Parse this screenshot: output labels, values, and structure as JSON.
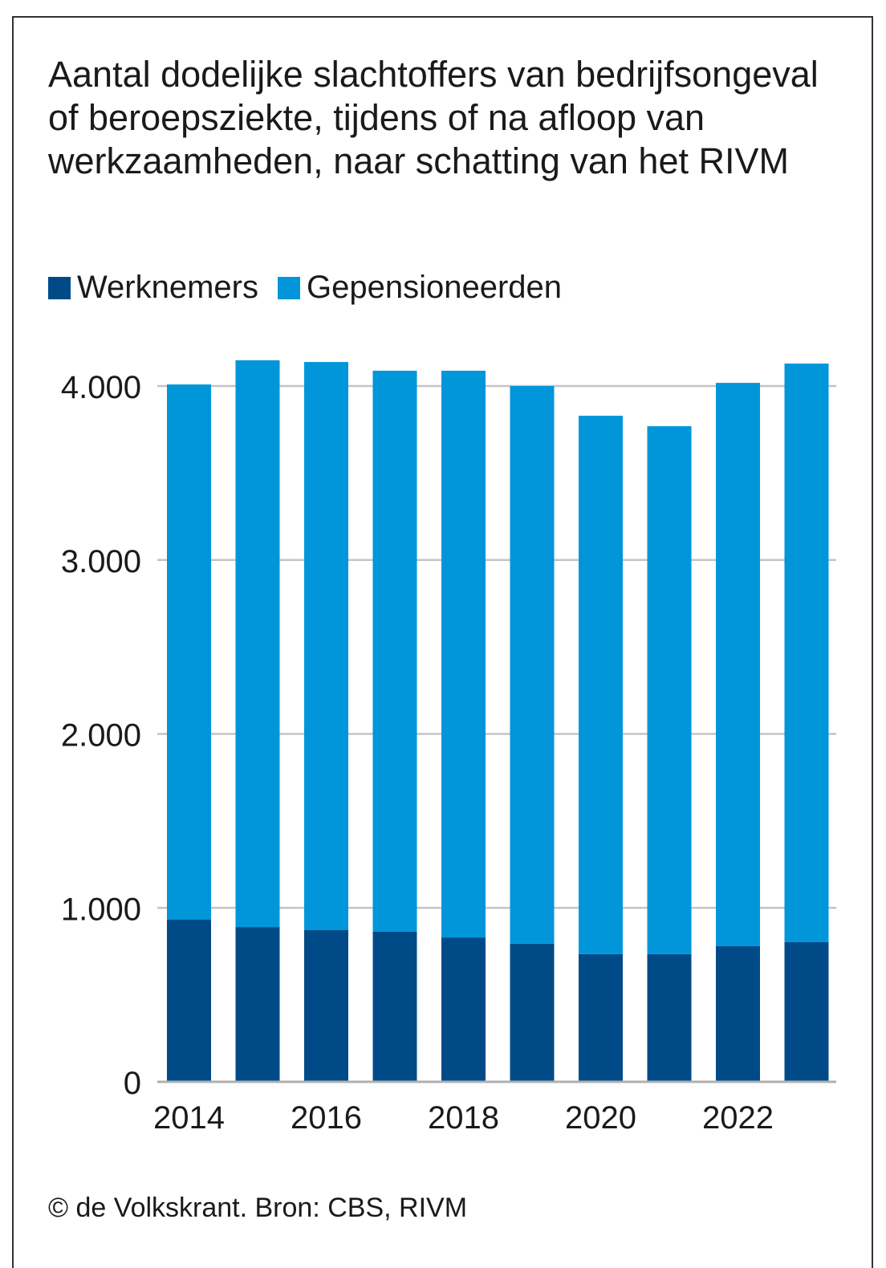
{
  "chart_data": {
    "type": "bar",
    "stacked": true,
    "title": "Aantal dodelijke slachtoffers van bedrijfsongeval of beroepsziekte, tijdens of na afloop van werkzaamheden, naar schatting van het RIVM",
    "categories": [
      "2014",
      "2015",
      "2016",
      "2017",
      "2018",
      "2019",
      "2020",
      "2021",
      "2022",
      "2023"
    ],
    "x_tick_labels": [
      "2014",
      "2016",
      "2018",
      "2020",
      "2022"
    ],
    "series": [
      {
        "name": "Werknemers",
        "color": "#004b87",
        "values": [
          932,
          890,
          872,
          863,
          830,
          794,
          734,
          734,
          780,
          803
        ]
      },
      {
        "name": "Gepensioneerden",
        "color": "#0096d9",
        "values": [
          3077,
          3258,
          3266,
          3225,
          3258,
          3206,
          3095,
          3035,
          3238,
          3326
        ]
      }
    ],
    "y_ticks": [
      0,
      1000,
      2000,
      3000,
      4000
    ],
    "y_tick_labels": [
      "0",
      "1.000",
      "2.000",
      "3.000",
      "4.000"
    ],
    "ylim": [
      0,
      4000
    ],
    "grid": true,
    "legend_position": "top-left",
    "xlabel": "",
    "ylabel": ""
  },
  "footer": "© de Volkskrant. Bron: CBS, RIVM"
}
